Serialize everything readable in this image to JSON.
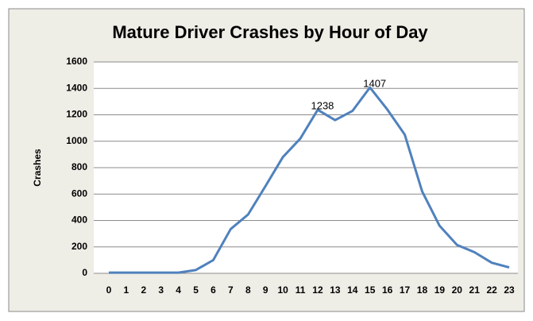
{
  "chart_data": {
    "type": "line",
    "title": "Mature Driver Crashes by Hour of Day",
    "y_label": "Crashes",
    "categories": [
      "0",
      "1",
      "2",
      "3",
      "4",
      "5",
      "6",
      "7",
      "8",
      "9",
      "10",
      "11",
      "12",
      "13",
      "14",
      "15",
      "16",
      "17",
      "18",
      "19",
      "20",
      "21",
      "22",
      "23"
    ],
    "series": [
      {
        "name": "Crashes",
        "color": "#4f81bd",
        "values": [
          5,
          5,
          5,
          5,
          5,
          25,
          100,
          335,
          445,
          660,
          880,
          1020,
          1238,
          1160,
          1230,
          1407,
          1240,
          1050,
          620,
          360,
          215,
          160,
          80,
          45
        ],
        "value_labels": [
          null,
          null,
          null,
          null,
          null,
          null,
          null,
          null,
          null,
          null,
          null,
          null,
          "1238",
          null,
          null,
          "1407",
          null,
          null,
          null,
          null,
          null,
          null,
          null,
          null
        ]
      }
    ],
    "ylim": [
      0,
      1600
    ],
    "yticks": [
      0,
      200,
      400,
      600,
      800,
      1000,
      1200,
      1400,
      1600
    ],
    "grid": true
  }
}
